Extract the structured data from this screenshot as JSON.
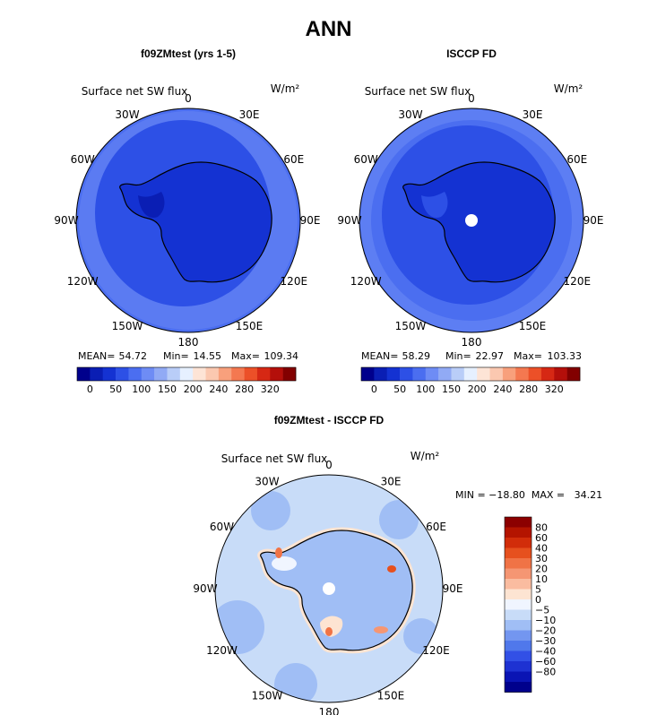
{
  "title": "ANN",
  "panels": [
    {
      "title": "f09ZMtest (yrs 1-5)",
      "field_label": "Surface net SW flux",
      "units": "W/m²",
      "stats": {
        "mean_label": "MEAN=",
        "mean": "54.72",
        "min_label": "Min=",
        "min": "14.55",
        "max_label": "Max=",
        "max": "109.34"
      }
    },
    {
      "title": "ISCCP FD",
      "field_label": "Surface net SW flux",
      "units": "W/m²",
      "stats": {
        "mean_label": "MEAN=",
        "mean": "58.29",
        "min_label": "Min=",
        "min": "22.97",
        "max_label": "Max=",
        "max": "103.33"
      }
    },
    {
      "title": "f09ZMtest - ISCCP FD",
      "field_label": "Surface net SW flux",
      "units": "W/m²",
      "stats_line": "MIN = −18.80  MAX =   34.21"
    }
  ],
  "longitude_labels": [
    "0",
    "30E",
    "60E",
    "90E",
    "120E",
    "150E",
    "180",
    "150W",
    "120W",
    "90W",
    "60W",
    "30W"
  ],
  "horizontal_colorbar": {
    "colors": [
      "#00008c",
      "#0a1eb4",
      "#1432d2",
      "#2d50e6",
      "#4b6ef0",
      "#6e8cf5",
      "#91aaf5",
      "#b9cdf8",
      "#e6f0ff",
      "#fde4d6",
      "#fbc8b0",
      "#f8a07c",
      "#f47850",
      "#ec5028",
      "#d62814",
      "#b40f0a",
      "#820000"
    ],
    "tick_labels": [
      "0",
      "50",
      "100",
      "150",
      "200",
      "240",
      "280",
      "320"
    ]
  },
  "vertical_colorbar": {
    "colors_top_to_bottom": [
      "#8c0000",
      "#b41400",
      "#d22d0a",
      "#e6501e",
      "#f07346",
      "#f59673",
      "#fabca0",
      "#fde4d2",
      "#f0f5ff",
      "#c8dcf8",
      "#a0bef5",
      "#7396f0",
      "#5078eb",
      "#3250e6",
      "#1e32d2",
      "#0a14b4",
      "#00008c"
    ],
    "tick_labels_top_to_bottom": [
      "80",
      "60",
      "40",
      "30",
      "20",
      "10",
      "5",
      "0",
      "−5",
      "−10",
      "−20",
      "−30",
      "−40",
      "−60",
      "−80"
    ]
  },
  "chart_data": [
    {
      "type": "heatmap",
      "title": "f09ZMtest (yrs 1-5)",
      "subtitle": "Surface net SW flux",
      "units": "W/m²",
      "projection": "south polar stereographic",
      "mean": 54.72,
      "min": 14.55,
      "max": 109.34,
      "contour_levels": [
        0,
        50,
        100,
        150,
        200,
        240,
        280,
        320
      ]
    },
    {
      "type": "heatmap",
      "title": "ISCCP FD",
      "subtitle": "Surface net SW flux",
      "units": "W/m²",
      "projection": "south polar stereographic",
      "mean": 58.29,
      "min": 22.97,
      "max": 103.33,
      "contour_levels": [
        0,
        50,
        100,
        150,
        200,
        240,
        280,
        320
      ]
    },
    {
      "type": "heatmap",
      "title": "f09ZMtest - ISCCP FD",
      "subtitle": "Surface net SW flux",
      "units": "W/m²",
      "projection": "south polar stereographic",
      "min": -18.8,
      "max": 34.21,
      "contour_levels": [
        -80,
        -60,
        -40,
        -30,
        -20,
        -10,
        -5,
        0,
        5,
        10,
        20,
        30,
        40,
        60,
        80
      ]
    }
  ]
}
